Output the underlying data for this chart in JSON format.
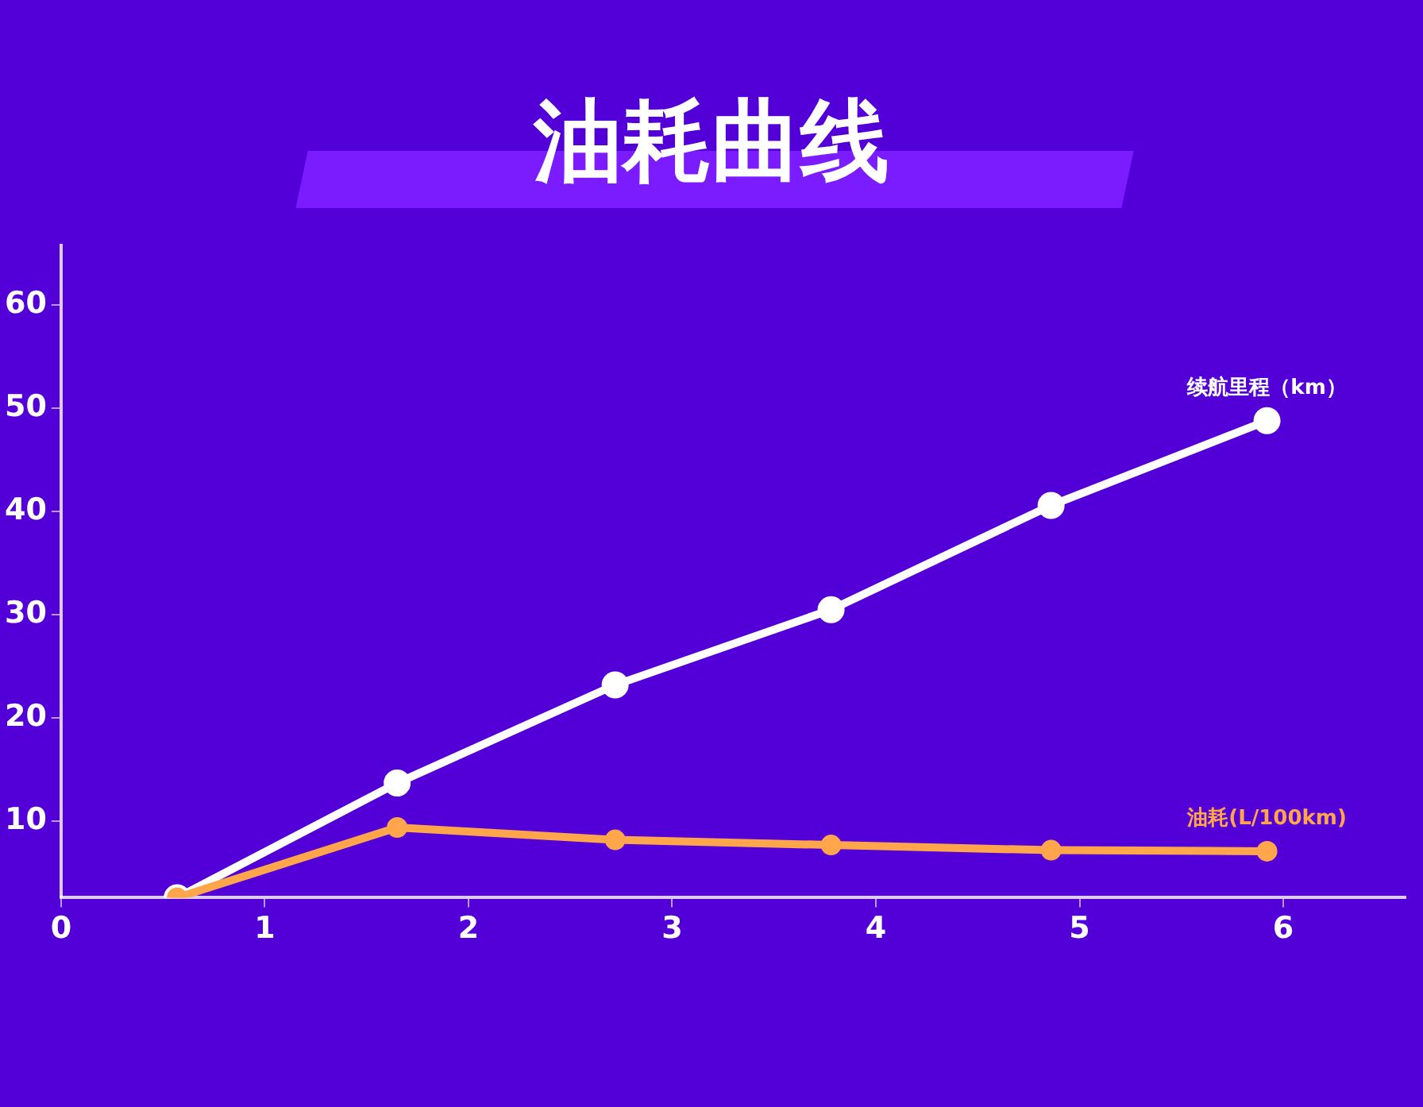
{
  "chart_data": {
    "type": "line",
    "title": "油耗曲线",
    "x": [
      0.57,
      1.65,
      2.72,
      3.78,
      4.86,
      5.92
    ],
    "series": [
      {
        "name": "续航里程（km）",
        "color": "#ffffff",
        "values": [
          2.6,
          13.7,
          23.2,
          30.5,
          40.6,
          48.8
        ]
      },
      {
        "name": "油耗(L/100km)",
        "color": "#ffa64d",
        "values": [
          2.6,
          9.4,
          8.2,
          7.7,
          7.2,
          7.1
        ]
      }
    ],
    "xlim": [
      0,
      6.6
    ],
    "xticks": [
      0,
      1,
      2,
      3,
      4,
      5,
      6
    ],
    "ylim": [
      2.6,
      65.8
    ],
    "yticks": [
      10,
      20,
      30,
      40,
      50,
      60
    ],
    "grid": false,
    "legend": false,
    "marker": "circle",
    "line_style": "solid"
  }
}
